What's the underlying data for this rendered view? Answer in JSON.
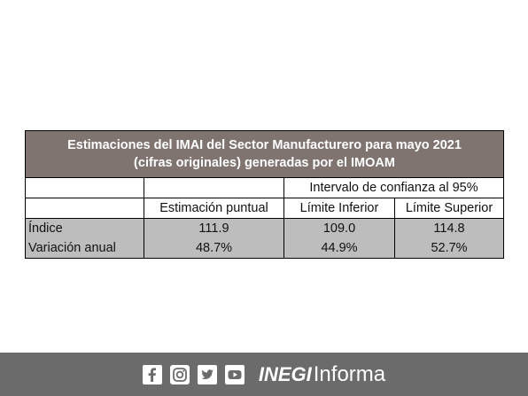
{
  "table": {
    "title_line1": "Estimaciones  del IMAI del Sector Manufacturero para mayo 2021",
    "title_line2": "(cifras originales)  generadas  por el IMOAM",
    "interval_header": "Intervalo de confianza al 95%",
    "columns": [
      "Estimación puntual",
      "Límite Inferior",
      "Límite Superior"
    ],
    "rows": [
      {
        "label": "Índice",
        "values": [
          "111.9",
          "109.0",
          "114.8"
        ]
      },
      {
        "label": "Variación anual",
        "values": [
          "48.7%",
          "44.9%",
          "52.7%"
        ]
      }
    ]
  },
  "footer": {
    "brand_bold": "INEGI",
    "brand_regular": "Informa",
    "icons": [
      "facebook-icon",
      "instagram-icon",
      "twitter-icon",
      "youtube-icon"
    ]
  },
  "colors": {
    "title_bg": "#7f7470",
    "data_bg": "#bdbdbd",
    "footer_bg": "#6b6b6b"
  }
}
